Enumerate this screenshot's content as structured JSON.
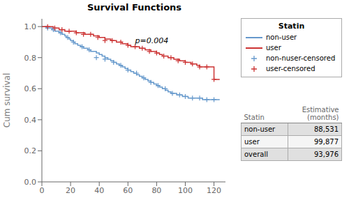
{
  "chart_data": {
    "type": "step",
    "title": "Survival Functions",
    "ylabel": "Cum survival",
    "xlim": [
      0,
      128
    ],
    "ylim": [
      0.0,
      1.05
    ],
    "xticks": [
      0,
      20,
      40,
      60,
      80,
      100,
      120
    ],
    "yticks": [
      {
        "value": 0,
        "label": "0.0"
      },
      0.2,
      0.4,
      0.6,
      0.8,
      {
        "value": 1,
        "label": "1.0"
      }
    ],
    "legend_title": "Statin",
    "series": [
      {
        "name": "non-user",
        "type": "line",
        "line_style": "step",
        "color": "#6699CC",
        "x": [
          0,
          1,
          2,
          3,
          4,
          5,
          6,
          7,
          8,
          9,
          10,
          11,
          12,
          13,
          14,
          15,
          16,
          17,
          18,
          19,
          20,
          21,
          22,
          23,
          24,
          25,
          26,
          27,
          28,
          29,
          30,
          32,
          34,
          36,
          38,
          40,
          42,
          44,
          46,
          48,
          50,
          52,
          54,
          56,
          58,
          60,
          62,
          64,
          66,
          68,
          70,
          72,
          74,
          76,
          78,
          80,
          82,
          84,
          86,
          88,
          90,
          92,
          94,
          96,
          98,
          100,
          102,
          104,
          106,
          108,
          110,
          112,
          114,
          116,
          118,
          120,
          122,
          124
        ],
        "values": [
          1.0,
          1.0,
          1.0,
          0.99,
          0.99,
          0.99,
          0.99,
          0.98,
          0.98,
          0.97,
          0.97,
          0.97,
          0.96,
          0.96,
          0.95,
          0.95,
          0.94,
          0.93,
          0.93,
          0.92,
          0.91,
          0.91,
          0.9,
          0.89,
          0.89,
          0.88,
          0.88,
          0.87,
          0.87,
          0.86,
          0.86,
          0.85,
          0.84,
          0.84,
          0.83,
          0.82,
          0.81,
          0.8,
          0.79,
          0.78,
          0.77,
          0.76,
          0.75,
          0.74,
          0.73,
          0.72,
          0.71,
          0.7,
          0.69,
          0.68,
          0.67,
          0.66,
          0.65,
          0.64,
          0.63,
          0.62,
          0.61,
          0.6,
          0.59,
          0.58,
          0.57,
          0.57,
          0.56,
          0.56,
          0.55,
          0.55,
          0.54,
          0.54,
          0.54,
          0.54,
          0.54,
          0.53,
          0.53,
          0.53,
          0.53,
          0.53,
          0.53,
          0.53
        ]
      },
      {
        "name": "user",
        "type": "line",
        "line_style": "step",
        "color": "#CC3333",
        "x": [
          0,
          2,
          4,
          6,
          8,
          10,
          12,
          14,
          16,
          18,
          20,
          22,
          24,
          26,
          28,
          30,
          32,
          34,
          36,
          38,
          40,
          42,
          44,
          46,
          48,
          50,
          52,
          54,
          56,
          58,
          60,
          62,
          64,
          66,
          68,
          70,
          72,
          74,
          76,
          78,
          80,
          82,
          84,
          86,
          88,
          90,
          92,
          94,
          96,
          98,
          100,
          102,
          104,
          106,
          108,
          110,
          112,
          114,
          116,
          118,
          120,
          122,
          124
        ],
        "values": [
          1.0,
          1.0,
          1.0,
          1.0,
          0.99,
          0.99,
          0.98,
          0.98,
          0.97,
          0.97,
          0.97,
          0.97,
          0.96,
          0.96,
          0.96,
          0.95,
          0.95,
          0.95,
          0.94,
          0.94,
          0.93,
          0.93,
          0.92,
          0.92,
          0.91,
          0.91,
          0.9,
          0.9,
          0.89,
          0.89,
          0.88,
          0.87,
          0.87,
          0.87,
          0.86,
          0.86,
          0.85,
          0.85,
          0.84,
          0.84,
          0.83,
          0.82,
          0.81,
          0.81,
          0.8,
          0.8,
          0.79,
          0.79,
          0.78,
          0.78,
          0.77,
          0.77,
          0.76,
          0.76,
          0.75,
          0.74,
          0.74,
          0.74,
          0.74,
          0.74,
          0.66,
          0.66,
          0.66
        ]
      },
      {
        "name": "non-nuser-censored",
        "type": "scatter",
        "marker": "+",
        "color": "#6699CC",
        "x": [
          4,
          8,
          13,
          18,
          22,
          28,
          33,
          38,
          44,
          50,
          55,
          60,
          66,
          71,
          76,
          81,
          86,
          91,
          96,
          100,
          105,
          110,
          115,
          120
        ],
        "values": [
          0.99,
          0.98,
          0.96,
          0.93,
          0.9,
          0.87,
          0.85,
          0.8,
          0.79,
          0.77,
          0.75,
          0.72,
          0.7,
          0.67,
          0.64,
          0.62,
          0.6,
          0.57,
          0.56,
          0.55,
          0.54,
          0.54,
          0.53,
          0.53
        ]
      },
      {
        "name": "user-censored",
        "type": "scatter",
        "marker": "+",
        "color": "#CC3333",
        "x": [
          4,
          9,
          14,
          19,
          24,
          29,
          34,
          39,
          44,
          49,
          55,
          60,
          65,
          70,
          75,
          80,
          85,
          90,
          95,
          100,
          105,
          110,
          115,
          120
        ],
        "values": [
          1.0,
          0.99,
          0.98,
          0.97,
          0.96,
          0.95,
          0.95,
          0.93,
          0.91,
          0.91,
          0.9,
          0.88,
          0.87,
          0.86,
          0.84,
          0.83,
          0.81,
          0.8,
          0.78,
          0.77,
          0.76,
          0.74,
          0.74,
          0.66
        ]
      }
    ],
    "annotations": [
      {
        "text": "p=0.004",
        "x": 65,
        "y": 0.895
      }
    ],
    "table": {
      "columns": [
        "Statin",
        "Estimative\n(months)"
      ],
      "rows": [
        [
          "non-user",
          "88,531"
        ],
        [
          "user",
          "99,877"
        ],
        [
          "overall",
          "93,976"
        ]
      ],
      "row_colors": [
        "#e0e0e0",
        "#f5f5f5",
        "#e0e0e0"
      ]
    }
  }
}
